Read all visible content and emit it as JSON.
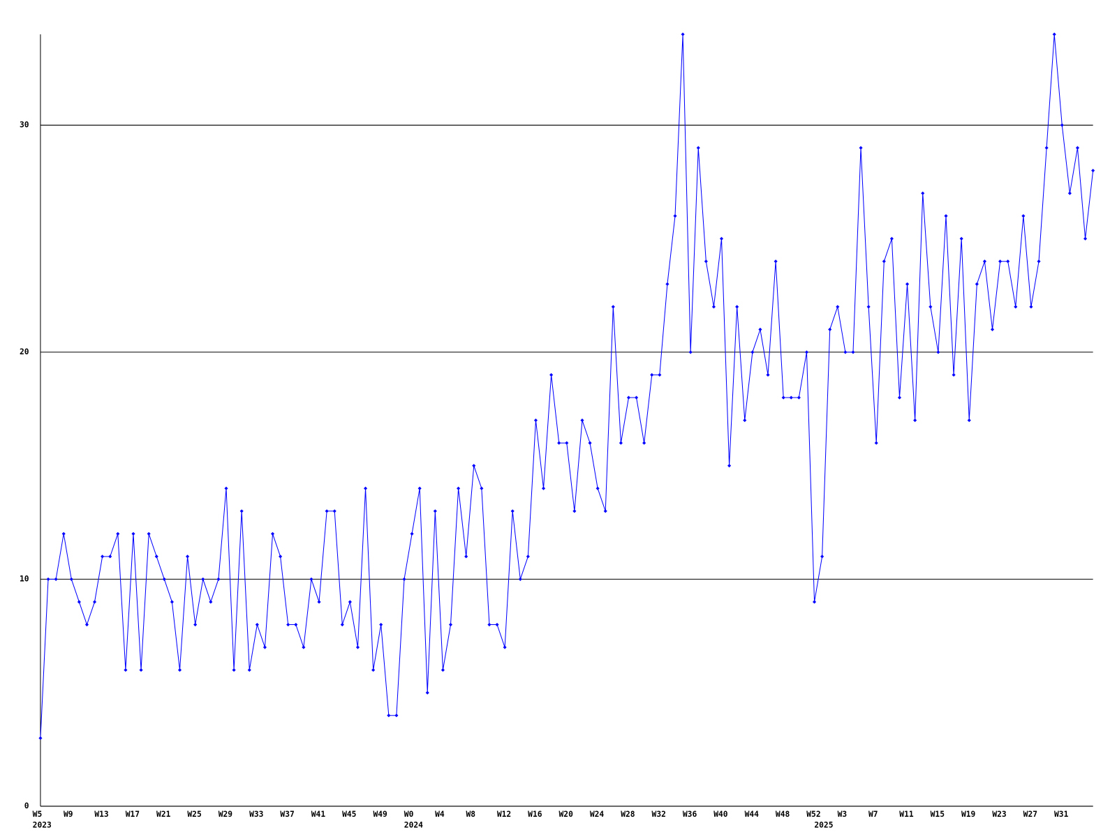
{
  "chart_data": {
    "type": "line",
    "categories": [
      "W5",
      null,
      null,
      null,
      "W9",
      null,
      null,
      null,
      "W13",
      null,
      null,
      null,
      "W17",
      null,
      null,
      null,
      "W21",
      null,
      null,
      null,
      "W25",
      null,
      null,
      null,
      "W29",
      null,
      null,
      null,
      "W33",
      null,
      null,
      null,
      "W37",
      null,
      null,
      null,
      "W41",
      null,
      null,
      null,
      "W45",
      null,
      null,
      null,
      "W49",
      null,
      null,
      null,
      "W0",
      null,
      null,
      null,
      "W4",
      null,
      null,
      null,
      "W8",
      null,
      null,
      null,
      "W12",
      null,
      null,
      null,
      "W16",
      null,
      null,
      null,
      "W20",
      null,
      null,
      null,
      "W24",
      null,
      null,
      null,
      "W28",
      null,
      null,
      null,
      "W32",
      null,
      null,
      null,
      "W36",
      null,
      null,
      null,
      "W40",
      null,
      null,
      null,
      "W44",
      null,
      null,
      null,
      "W48",
      null,
      null,
      null,
      "W52",
      null,
      null,
      null,
      "W3",
      null,
      null,
      null,
      "W7",
      null,
      null,
      null,
      "W11",
      null,
      null,
      null,
      "W15",
      null,
      null,
      null,
      "W19",
      null,
      null,
      null,
      "W23",
      null,
      null,
      null,
      "W27",
      null,
      null,
      null,
      "W31",
      null,
      null,
      null,
      null
    ],
    "years": [
      "2023",
      null,
      null,
      null,
      null,
      null,
      null,
      null,
      null,
      null,
      null,
      null,
      null,
      null,
      null,
      null,
      null,
      null,
      null,
      null,
      null,
      null,
      null,
      null,
      null,
      null,
      null,
      null,
      null,
      null,
      null,
      null,
      null,
      null,
      null,
      null,
      null,
      null,
      null,
      null,
      null,
      null,
      null,
      null,
      null,
      null,
      null,
      null,
      "2024",
      null,
      null,
      null,
      null,
      null,
      null,
      null,
      null,
      null,
      null,
      null,
      null,
      null,
      null,
      null,
      null,
      null,
      null,
      null,
      null,
      null,
      null,
      null,
      null,
      null,
      null,
      null,
      null,
      null,
      null,
      null,
      null,
      null,
      null,
      null,
      null,
      null,
      null,
      null,
      null,
      null,
      null,
      null,
      null,
      null,
      null,
      null,
      null,
      null,
      null,
      null,
      null,
      "2025",
      null,
      null,
      null,
      null,
      null,
      null,
      null,
      null,
      null,
      null,
      null,
      null,
      null,
      null,
      null,
      null,
      null,
      null,
      null,
      null,
      null,
      null,
      null,
      null,
      null,
      null,
      null,
      null,
      null,
      null,
      null,
      null,
      null,
      null,
      null
    ],
    "series": [
      {
        "color": "#0000ff",
        "values": [
          3,
          10,
          10,
          12,
          10,
          9,
          8,
          9,
          11,
          11,
          12,
          6,
          12,
          6,
          12,
          11,
          10,
          9,
          6,
          11,
          8,
          10,
          9,
          10,
          14,
          6,
          13,
          6,
          8,
          7,
          12,
          11,
          8,
          8,
          7,
          10,
          9,
          13,
          13,
          8,
          9,
          7,
          14,
          6,
          8,
          4,
          4,
          10,
          12,
          14,
          5,
          13,
          6,
          8,
          14,
          11,
          15,
          14,
          8,
          8,
          7,
          13,
          10,
          11,
          17,
          14,
          19,
          16,
          16,
          13,
          17,
          16,
          14,
          13,
          22,
          16,
          18,
          18,
          16,
          19,
          19,
          23,
          26,
          34,
          20,
          29,
          24,
          22,
          25,
          15,
          22,
          17,
          20,
          21,
          19,
          24,
          18,
          18,
          18,
          20,
          9,
          11,
          21,
          22,
          20,
          20,
          29,
          22,
          16,
          24,
          25,
          18,
          23,
          17,
          27,
          22,
          20,
          26,
          19,
          25,
          17,
          23,
          24,
          21,
          24,
          24,
          22,
          26,
          22,
          24,
          29,
          34,
          30,
          27,
          29,
          25,
          28
        ]
      }
    ],
    "ylim": [
      0,
      34
    ],
    "yticks": [
      0,
      10,
      20,
      30
    ],
    "grid": true
  }
}
